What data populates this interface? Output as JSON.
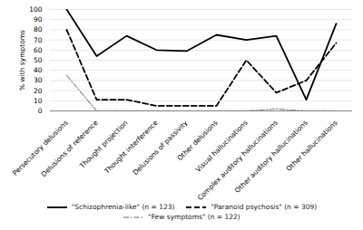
{
  "chart_data": {
    "type": "line",
    "categories": [
      "Persecutory delusions",
      "Delusions of reference",
      "Thought projection",
      "Thought interference",
      "Delusions of passivity",
      "Other delusions",
      "Visual hallucinations",
      "Complex auditory hallucinations",
      "Other auditory hallucinations",
      "Other hallucinations"
    ],
    "series": [
      {
        "name": "\"Schizophrenia-like\" (n = 123)",
        "color": "#000000",
        "line_style": "solid",
        "values": [
          100,
          54,
          74,
          60,
          59,
          75,
          70,
          74,
          11,
          86
        ]
      },
      {
        "name": "\"Paranoid psychosis\" (n = 309)",
        "color": "#000000",
        "line_style": "dashed",
        "values": [
          80,
          11,
          11,
          5,
          5,
          5,
          50,
          18,
          30,
          67
        ]
      },
      {
        "name": "\"Few symptoms\" (n = 122)",
        "color": "#999999",
        "line_style": "dashdot",
        "values": [
          35,
          0,
          0,
          0,
          0,
          0,
          0,
          2,
          0,
          0
        ]
      }
    ],
    "y_label": "% with symptoms",
    "ylim": [
      0,
      100
    ],
    "yticks": [
      0,
      10,
      20,
      30,
      40,
      50,
      60,
      70,
      80,
      90,
      100
    ],
    "grid": true,
    "legend": "bottom"
  }
}
